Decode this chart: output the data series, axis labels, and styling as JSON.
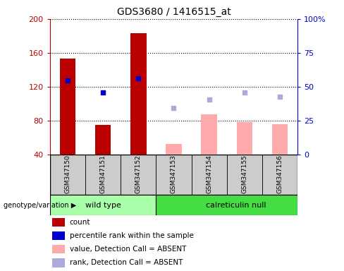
{
  "title": "GDS3680 / 1416515_at",
  "samples": [
    "GSM347150",
    "GSM347151",
    "GSM347152",
    "GSM347153",
    "GSM347154",
    "GSM347155",
    "GSM347156"
  ],
  "ylim_left": [
    40,
    200
  ],
  "ylim_right": [
    0,
    100
  ],
  "yticks_left": [
    40,
    80,
    120,
    160,
    200
  ],
  "yticks_right": [
    0,
    25,
    50,
    75,
    100
  ],
  "count_values": [
    153,
    75,
    183,
    null,
    null,
    null,
    null
  ],
  "percentile_values": [
    127,
    113,
    130,
    null,
    null,
    null,
    null
  ],
  "absent_value_bars": [
    null,
    null,
    null,
    52,
    87,
    78,
    76
  ],
  "absent_rank_markers": [
    null,
    null,
    null,
    95,
    105,
    113,
    108
  ],
  "bar_width": 0.45,
  "count_color": "#bb0000",
  "percentile_color": "#0000cc",
  "absent_value_color": "#ffaaaa",
  "absent_rank_color": "#aaaadd",
  "bg_color": "#ffffff",
  "group_bg_wild": "#aaffaa",
  "group_bg_null": "#44dd44",
  "sample_bg": "#cccccc",
  "title_fontsize": 10,
  "legend_items": [
    {
      "color": "#bb0000",
      "label": "count"
    },
    {
      "color": "#0000cc",
      "label": "percentile rank within the sample"
    },
    {
      "color": "#ffaaaa",
      "label": "value, Detection Call = ABSENT"
    },
    {
      "color": "#aaaadd",
      "label": "rank, Detection Call = ABSENT"
    }
  ],
  "wild_type_indices": [
    0,
    1,
    2
  ],
  "null_indices": [
    3,
    4,
    5,
    6
  ],
  "wild_type_label": "wild type",
  "null_label": "calreticulin null",
  "genotype_label": "genotype/variation"
}
